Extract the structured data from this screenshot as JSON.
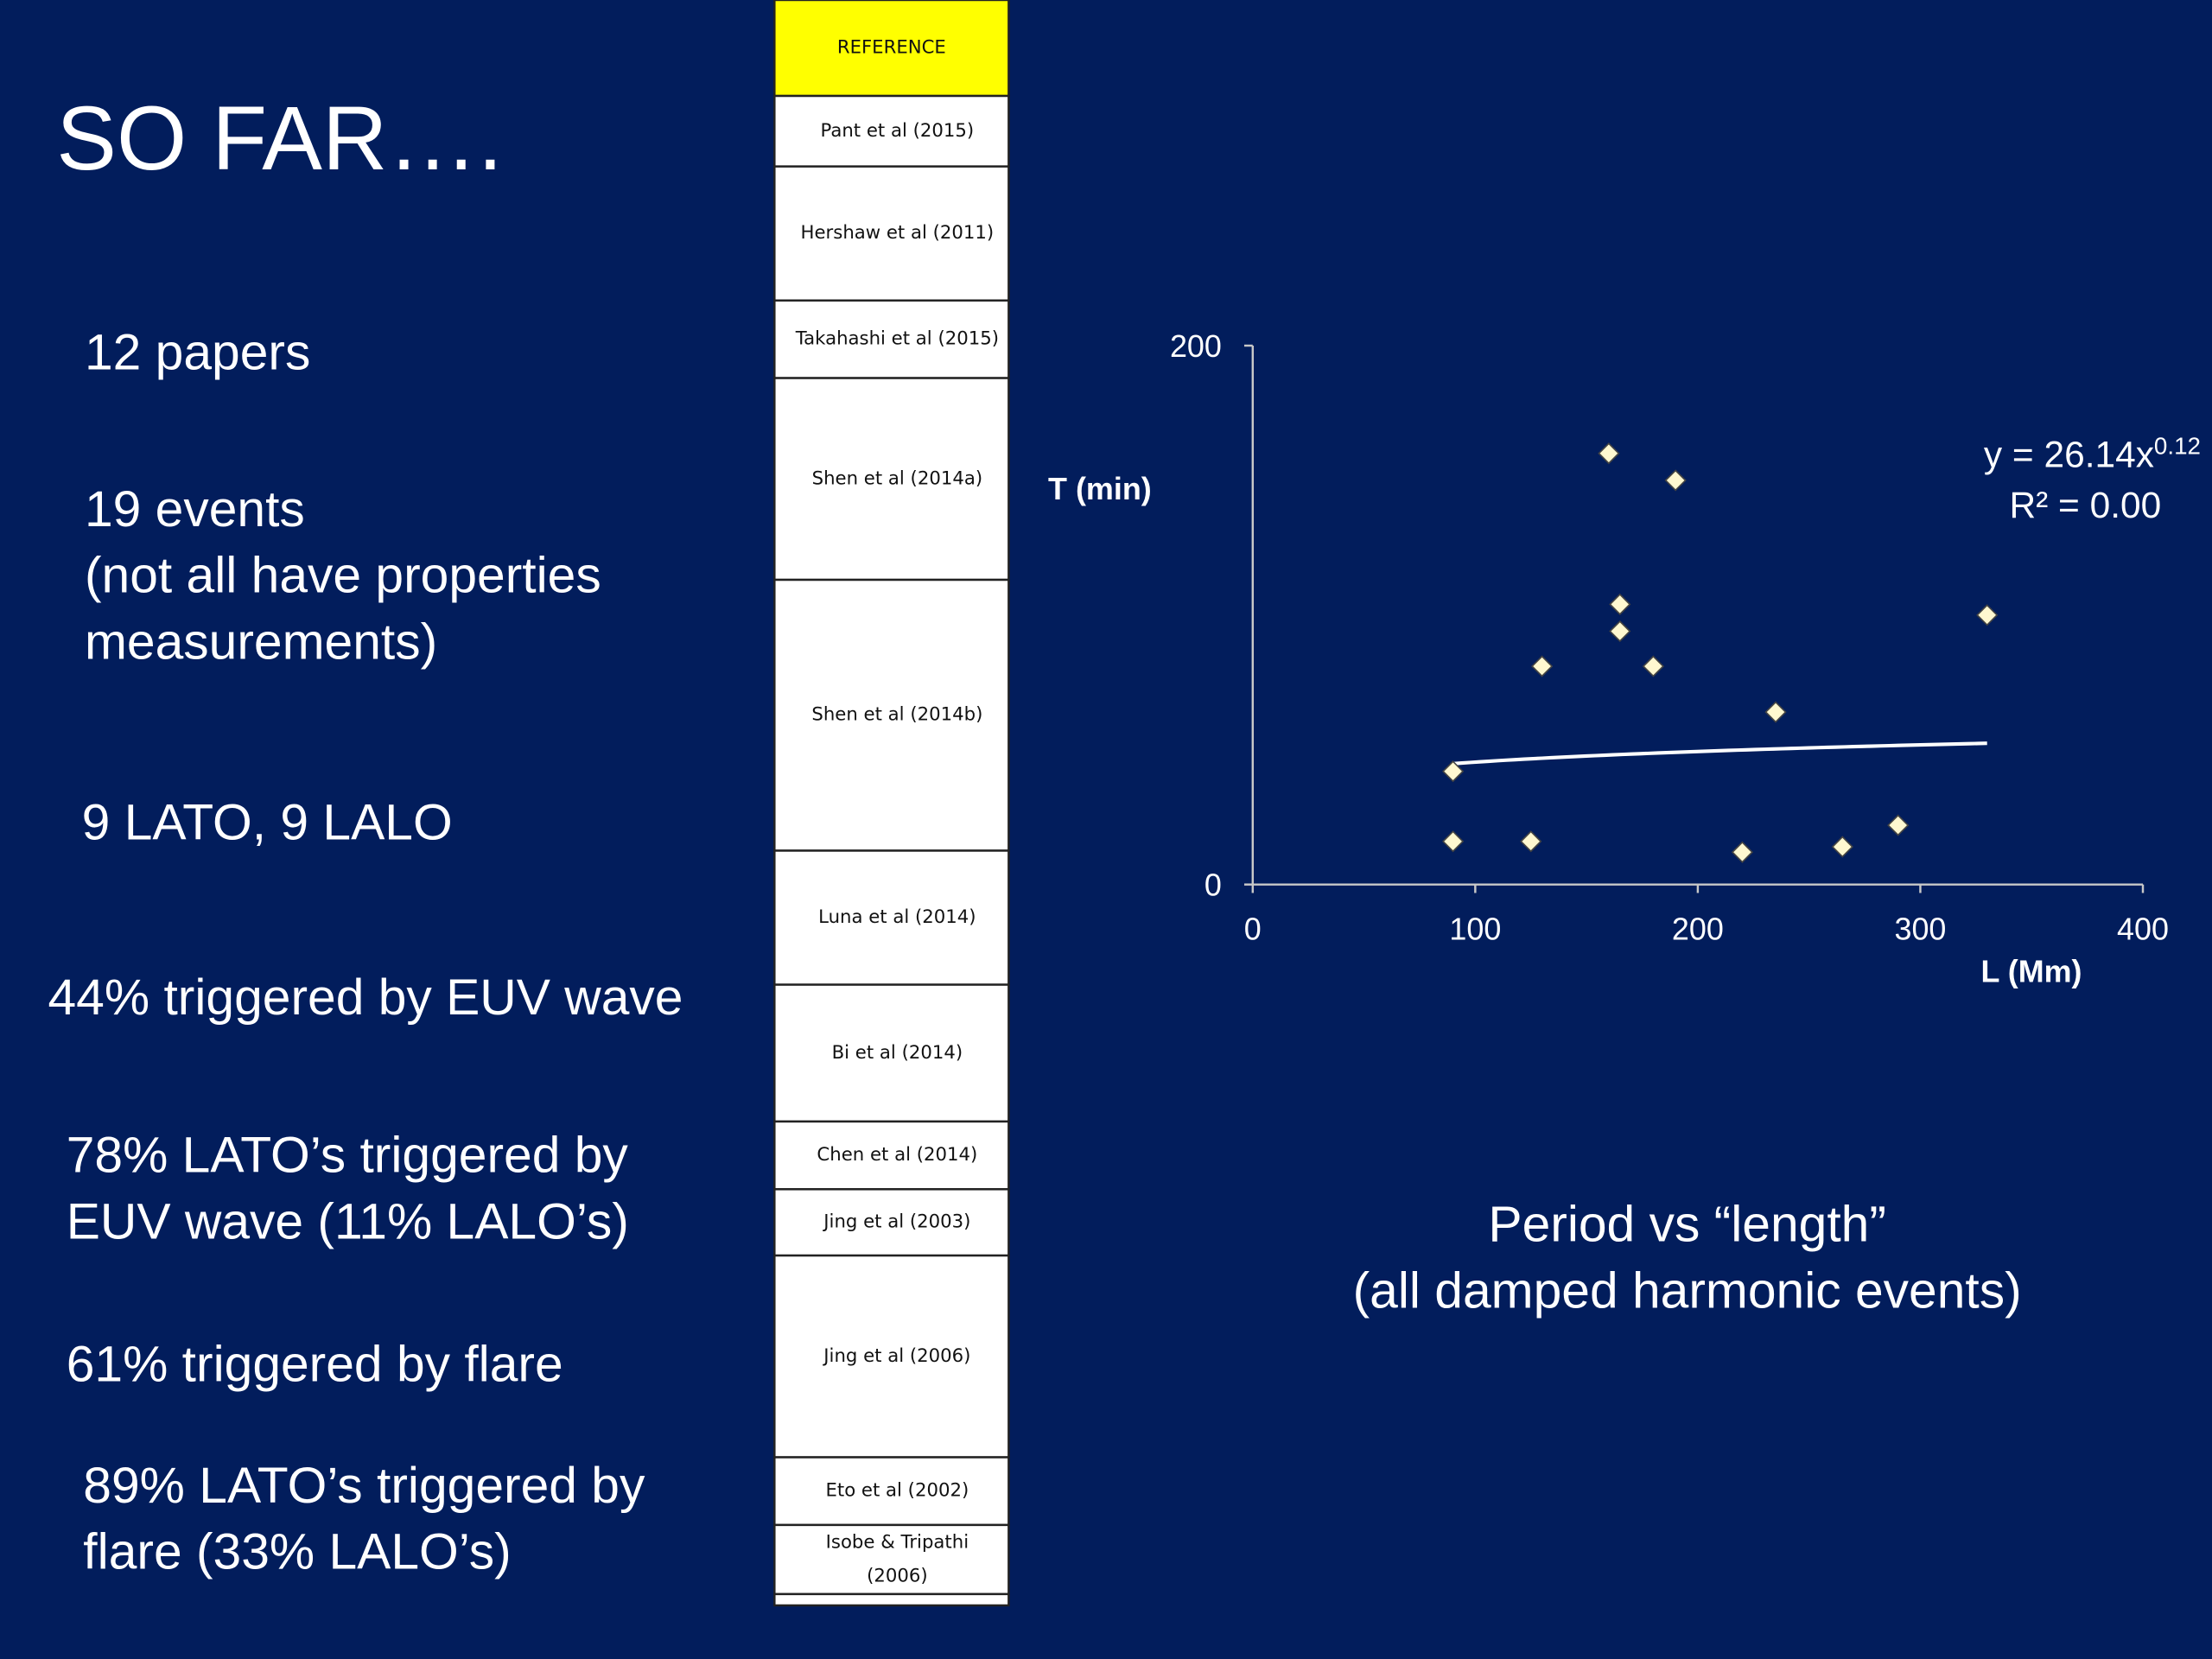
{
  "slide": {
    "title": "SO FAR….",
    "items": [
      [
        "12 papers"
      ],
      [
        "19 events",
        "(not all have properties",
        "measurements)"
      ],
      [
        "9 LATO, 9 LALO"
      ],
      [
        "44% triggered by EUV wave"
      ],
      [
        "78% LATO’s triggered by",
        "EUV wave (11% LALO’s)"
      ],
      [
        "61% triggered by flare"
      ],
      [
        "89% LATO’s triggered by",
        "flare (33% LALO’s)"
      ]
    ],
    "caption": [
      "Period vs “length”",
      "(all damped harmonic events)"
    ]
  },
  "reference_table": {
    "header": "REFERENCE",
    "rows": [
      [
        "Pant et al (2015)"
      ],
      [
        "Hershaw et al (2011)"
      ],
      [
        "Takahashi et al (2015)"
      ],
      [
        "Shen et al (2014a)"
      ],
      [
        "Shen et al (2014b)"
      ],
      [
        "Luna et al (2014)"
      ],
      [
        "Bi et al (2014)"
      ],
      [
        "Chen et al (2014)"
      ],
      [
        "Jing et al (2003)"
      ],
      [
        "Jing et al (2006)"
      ],
      [
        "Eto et al (2002)"
      ],
      [
        "Isobe & Tripathi",
        "(2006)"
      ]
    ]
  },
  "chart_data": {
    "type": "scatter",
    "x_label": "L (Mm)",
    "y_label": "T (min)",
    "x": [
      160,
      190,
      165,
      165,
      130,
      180,
      330,
      235,
      90,
      90,
      125,
      220,
      265,
      290
    ],
    "values": [
      160,
      150,
      104,
      94,
      81,
      81,
      100,
      64,
      42,
      16,
      16,
      12,
      14,
      22
    ],
    "color": "#fff8d0",
    "xlim": [
      0,
      400
    ],
    "xticks": [
      0,
      100,
      200,
      300,
      400
    ],
    "ylim": [
      0,
      200
    ],
    "yticks": [
      0,
      200
    ],
    "trendline": {
      "a": 26.14,
      "b": 0.12,
      "color": "#ffffff"
    },
    "equation": "y = 26.14x",
    "equation_exponent": "0.12",
    "r2_label": "R² = 0.00"
  }
}
